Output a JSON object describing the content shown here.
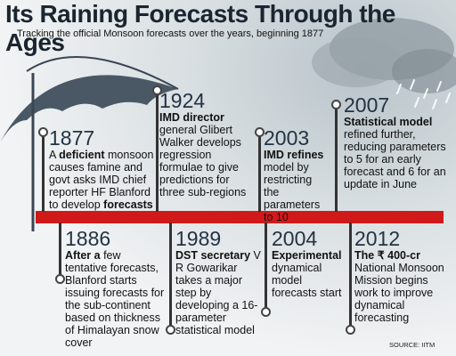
{
  "title": "Its Raining Forecasts Through the Ages",
  "subtitle": "Tracking the official Monsoon forecasts over the years, beginning 1877",
  "events": {
    "e1877": {
      "year": "1877",
      "pre": "A ",
      "bold": "deficient",
      "post": " monsoon causes famine and govt asks IMD chief reporter HF Blanford to develop ",
      "bold2": "forecasts"
    },
    "e1886": {
      "year": "1886",
      "bold": "After a",
      "post": " few tentative forecasts, Blanford starts issuing forecasts for the sub-continent based on thickness of Himalayan snow cover"
    },
    "e1924": {
      "year": "1924",
      "bold": "IMD director",
      "post": " general Glibert Walker develops regression formulae to give predictions for three sub-regions"
    },
    "e1989": {
      "year": "1989",
      "bold": "DST secretary",
      "post": " V R Gowarikar takes a major step by developing a 16-parameter statistical model"
    },
    "e2003": {
      "year": "2003",
      "bold": "IMD refines",
      "post": " model by restricting the parameters to 10"
    },
    "e2004": {
      "year": "2004",
      "bold": "Experimental",
      "post": " dynamical model forecasts start"
    },
    "e2007": {
      "year": "2007",
      "bold": "Statistical model",
      "post": " refined further, reducing parameters to 5 for an early forecast and 6 for an update in June"
    },
    "e2012": {
      "year": "2012",
      "bold": "The ₹ 400-cr",
      "post": " National Monsoon Mission begins work to improve dynamical forecasting"
    }
  },
  "source": "SOURCE: IITM",
  "colors": {
    "timeline": "#d01a1a",
    "umbrella": "#4a5866",
    "title": "#1a2530"
  }
}
